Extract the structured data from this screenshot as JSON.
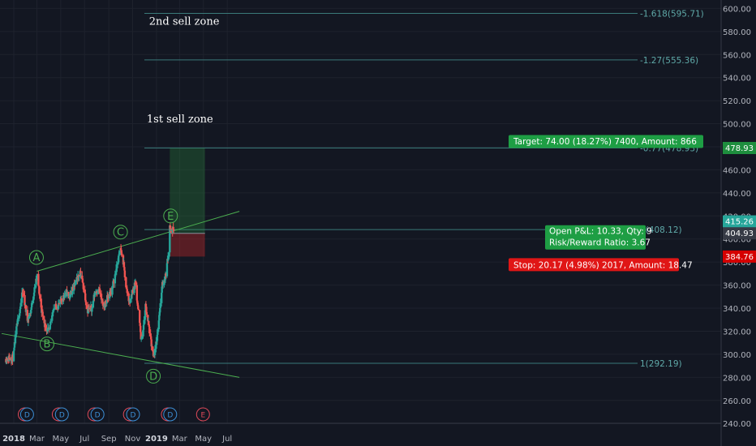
{
  "chart_data": {
    "type": "candlestick",
    "ylim": [
      240,
      600
    ],
    "y_ticks": [
      240,
      260,
      280,
      300,
      320,
      340,
      360,
      380,
      400,
      420,
      440,
      460,
      480,
      500,
      520,
      540,
      560,
      580,
      600
    ],
    "x_ticks": [
      {
        "label": "2018",
        "date": "2018-01-01",
        "bold": true
      },
      {
        "label": "Mar",
        "date": "2018-03-01"
      },
      {
        "label": "May",
        "date": "2018-05-01"
      },
      {
        "label": "Jul",
        "date": "2018-07-01"
      },
      {
        "label": "Sep",
        "date": "2018-09-01"
      },
      {
        "label": "Nov",
        "date": "2018-11-01"
      },
      {
        "label": "2019",
        "date": "2019-01-01",
        "bold": true
      },
      {
        "label": "Mar",
        "date": "2019-03-01"
      },
      {
        "label": "May",
        "date": "2019-05-01"
      },
      {
        "label": "Jul",
        "date": "2019-07-01"
      }
    ],
    "colors": {
      "up": "#26a69a",
      "down": "#ef5350",
      "fib": "#4a9d9c",
      "wave": "#4caf50",
      "channel": "#4caf50"
    },
    "price_path": [
      [
        "2017-12-12",
        296
      ],
      [
        "2017-12-31",
        297
      ],
      [
        "2018-01-06",
        318
      ],
      [
        "2018-01-17",
        340
      ],
      [
        "2018-01-24",
        355
      ],
      [
        "2018-02-05",
        330
      ],
      [
        "2018-02-12",
        335
      ],
      [
        "2018-02-24",
        358
      ],
      [
        "2018-03-02",
        368
      ],
      [
        "2018-03-12",
        340
      ],
      [
        "2018-03-22",
        325
      ],
      [
        "2018-04-02",
        319
      ],
      [
        "2018-04-12",
        340
      ],
      [
        "2018-04-24",
        342
      ],
      [
        "2018-05-01",
        345
      ],
      [
        "2018-05-14",
        354
      ],
      [
        "2018-05-24",
        350
      ],
      [
        "2018-06-08",
        362
      ],
      [
        "2018-06-20",
        372
      ],
      [
        "2018-07-02",
        352
      ],
      [
        "2018-07-08",
        338
      ],
      [
        "2018-07-20",
        340
      ],
      [
        "2018-07-28",
        355
      ],
      [
        "2018-08-08",
        355
      ],
      [
        "2018-08-18",
        340
      ],
      [
        "2018-08-30",
        350
      ],
      [
        "2018-09-08",
        355
      ],
      [
        "2018-09-18",
        370
      ],
      [
        "2018-10-01",
        392
      ],
      [
        "2018-10-08",
        380
      ],
      [
        "2018-10-16",
        357
      ],
      [
        "2018-10-24",
        345
      ],
      [
        "2018-11-01",
        355
      ],
      [
        "2018-11-08",
        362
      ],
      [
        "2018-11-18",
        330
      ],
      [
        "2018-11-24",
        308
      ],
      [
        "2018-12-04",
        342
      ],
      [
        "2018-12-12",
        325
      ],
      [
        "2018-12-24",
        296
      ],
      [
        "2019-01-01",
        310
      ],
      [
        "2019-01-08",
        335
      ],
      [
        "2019-01-16",
        360
      ],
      [
        "2019-01-24",
        368
      ],
      [
        "2019-01-31",
        385
      ],
      [
        "2019-02-04",
        410
      ],
      [
        "2019-02-10",
        406
      ],
      [
        "2019-02-14",
        410
      ]
    ],
    "channel_lines": [
      {
        "from": [
          "2018-03-01",
          372
        ],
        "to": [
          "2019-08-01",
          424
        ]
      },
      {
        "from": [
          "2017-12-01",
          318
        ],
        "to": [
          "2019-08-01",
          280
        ]
      }
    ],
    "fib_levels": [
      {
        "label": "-1.618(595.71)",
        "value": 595.71,
        "from": "2018-12-01"
      },
      {
        "label": "-1.27(555.36)",
        "value": 555.36,
        "from": "2018-12-01"
      },
      {
        "label": "-0.77(478.93)",
        "value": 478.93,
        "from": "2018-12-01"
      },
      {
        "label": "0(408.12)",
        "value": 408.12,
        "from": "2018-12-01"
      },
      {
        "label": "1(292.19)",
        "value": 292.19,
        "from": "2018-12-01"
      }
    ],
    "wave_labels": [
      {
        "label": "A",
        "date": "2018-02-28",
        "value": 384
      },
      {
        "label": "B",
        "date": "2018-03-27",
        "value": 309
      },
      {
        "label": "C",
        "date": "2018-10-01",
        "value": 406
      },
      {
        "label": "D",
        "date": "2018-12-24",
        "value": 281
      },
      {
        "label": "E",
        "date": "2019-02-06",
        "value": 420
      }
    ],
    "position": {
      "from": "2019-02-04",
      "to": "2019-05-05",
      "entry": 404.93,
      "target": 478.93,
      "stop": 384.76,
      "target_text": "Target: 74.00 (18.27%) 7400, Amount: 866",
      "stop_text": "Stop: 20.17 (4.98%) 2017, Amount: 18.47",
      "pl_text": "Open P&L: 10.33, Qty: 9",
      "rr_text": "Risk/Reward Ratio: 3.67"
    },
    "zone_labels": [
      {
        "label": "2nd sell zone",
        "date": "2018-12-13",
        "value": 586
      },
      {
        "label": "1st sell zone",
        "date": "2018-12-07",
        "value": 501
      }
    ],
    "price_badges": [
      {
        "text": "478.93",
        "value": 478.93,
        "bg": "#1e8e3e",
        "fg": "#ffffff"
      },
      {
        "text": "415.26",
        "value": 415.26,
        "bg": "#26a69a",
        "fg": "#ffffff"
      },
      {
        "text": "404.93",
        "value": 404.93,
        "bg": "#363a45",
        "fg": "#ffffff"
      },
      {
        "text": "384.76",
        "value": 384.76,
        "bg": "#d50000",
        "fg": "#ffffff"
      }
    ],
    "events": [
      {
        "label": "E",
        "date": "2018-01-29",
        "kind": "earnings"
      },
      {
        "label": "D",
        "date": "2018-02-04",
        "kind": "dividend"
      },
      {
        "label": "E",
        "date": "2018-04-26",
        "kind": "earnings"
      },
      {
        "label": "D",
        "date": "2018-05-04",
        "kind": "dividend"
      },
      {
        "label": "E",
        "date": "2018-07-26",
        "kind": "earnings"
      },
      {
        "label": "D",
        "date": "2018-08-03",
        "kind": "dividend"
      },
      {
        "label": "E",
        "date": "2018-10-25",
        "kind": "earnings"
      },
      {
        "label": "D",
        "date": "2018-11-02",
        "kind": "dividend"
      },
      {
        "label": "E",
        "date": "2019-01-30",
        "kind": "earnings"
      },
      {
        "label": "D",
        "date": "2019-02-05",
        "kind": "dividend"
      },
      {
        "label": "E",
        "date": "2019-04-30",
        "kind": "earnings"
      }
    ]
  }
}
